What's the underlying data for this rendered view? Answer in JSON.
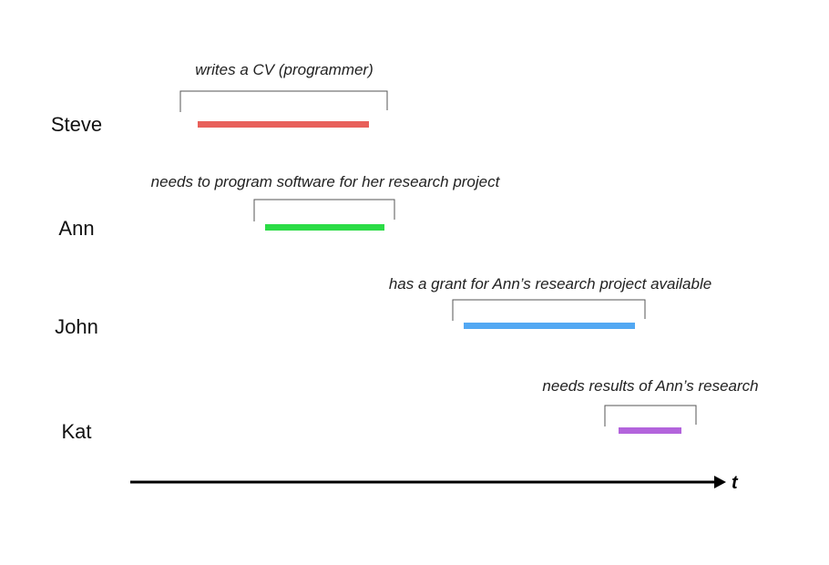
{
  "people": [
    {
      "name": "Steve",
      "annotation": "writes a CV (programmer)",
      "color": "#e8605a"
    },
    {
      "name": "Ann",
      "annotation": "needs to program software for her research project",
      "color": "#2bdc46"
    },
    {
      "name": "John",
      "annotation": "has a grant for Ann’s research project available",
      "color": "#52a8f3"
    },
    {
      "name": "Kat",
      "annotation": "needs results of Ann’s research",
      "color": "#b364dc"
    }
  ],
  "axis": {
    "label": "t",
    "color": "#000000"
  }
}
